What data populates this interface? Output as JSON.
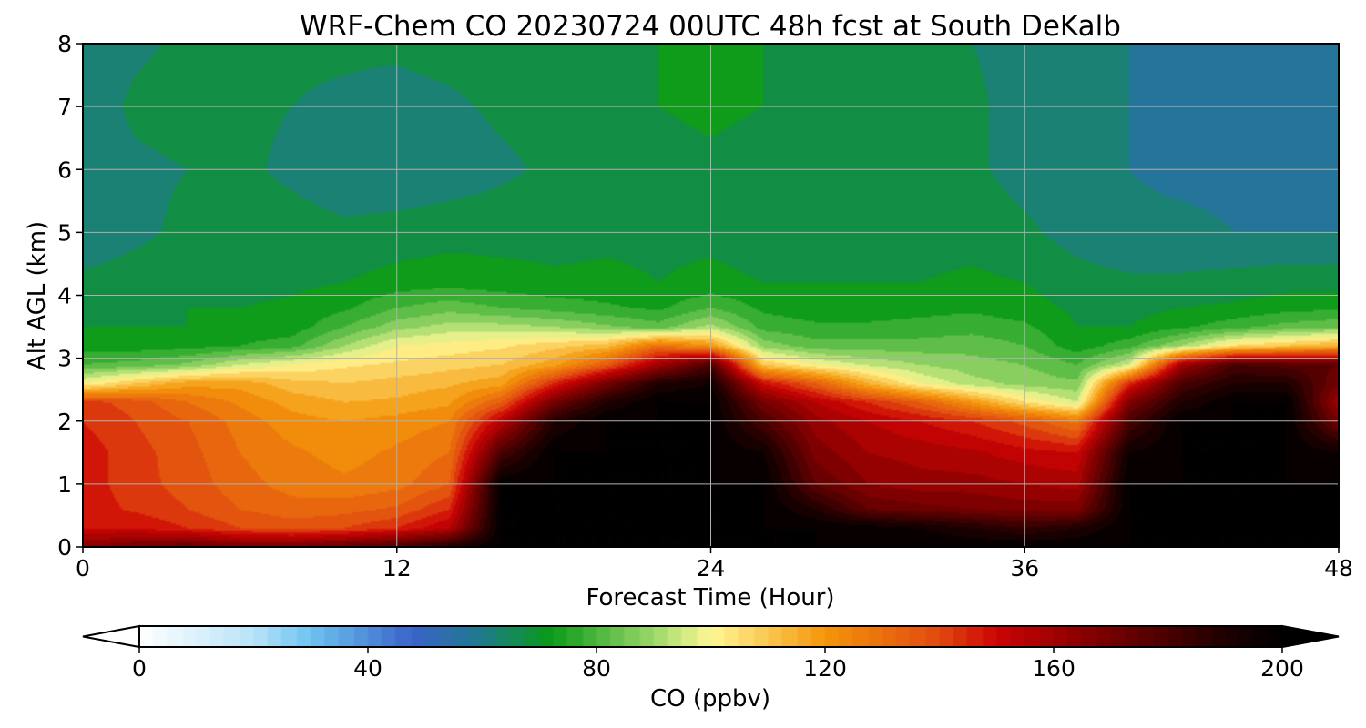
{
  "chart_data": {
    "type": "heatmap",
    "title": "WRF-Chem CO  20230724 00UTC 48h fcst at South DeKalb",
    "xlabel": "Forecast Time (Hour)",
    "ylabel": "Alt AGL (km)",
    "xlim": [
      0,
      48
    ],
    "ylim": [
      0,
      8
    ],
    "x_ticks": [
      0,
      12,
      24,
      36,
      48
    ],
    "y_ticks": [
      0,
      1,
      2,
      3,
      4,
      5,
      6,
      7,
      8
    ],
    "grid": true,
    "colorbar": {
      "label": "CO  (ppbv)",
      "range": [
        -10,
        210
      ],
      "ticks": [
        0,
        40,
        80,
        120,
        160,
        200
      ],
      "extend": "both",
      "orientation": "horizontal",
      "stops": [
        {
          "v": -10,
          "c": "#ffffff"
        },
        {
          "v": 0,
          "c": "#ffffff"
        },
        {
          "v": 20,
          "c": "#b8e4f8"
        },
        {
          "v": 30,
          "c": "#6cc3f0"
        },
        {
          "v": 48,
          "c": "#3a63c8"
        },
        {
          "v": 60,
          "c": "#1e7a8c"
        },
        {
          "v": 72,
          "c": "#0a9a18"
        },
        {
          "v": 90,
          "c": "#9cd86a"
        },
        {
          "v": 100,
          "c": "#fff896"
        },
        {
          "v": 120,
          "c": "#f4960a"
        },
        {
          "v": 140,
          "c": "#e04a10"
        },
        {
          "v": 150,
          "c": "#cc0404"
        },
        {
          "v": 165,
          "c": "#8a0000"
        },
        {
          "v": 190,
          "c": "#1e0000"
        },
        {
          "v": 200,
          "c": "#000000"
        },
        {
          "v": 210,
          "c": "#000000"
        }
      ]
    },
    "z_unit": "ppbv",
    "z_grid": {
      "x": [
        0,
        2,
        4,
        6,
        8,
        10,
        12,
        14,
        16,
        18,
        20,
        22,
        24,
        26,
        28,
        30,
        32,
        34,
        36,
        38,
        40,
        42,
        44,
        46,
        48
      ],
      "y": [
        0,
        0.3,
        0.6,
        1,
        1.5,
        2,
        2.3,
        2.6,
        2.9,
        3.2,
        3.5,
        3.8,
        4.2,
        5,
        6,
        7,
        8
      ],
      "values": [
        [
          165,
          170,
          175,
          170,
          170,
          175,
          180,
          190,
          200,
          200,
          200,
          200,
          200,
          200,
          200,
          200,
          200,
          200,
          200,
          200,
          200,
          200,
          200,
          200,
          200
        ],
        [
          150,
          150,
          145,
          140,
          138,
          140,
          145,
          155,
          200,
          200,
          200,
          200,
          200,
          200,
          200,
          198,
          195,
          190,
          185,
          190,
          200,
          200,
          200,
          200,
          200
        ],
        [
          148,
          144,
          140,
          135,
          132,
          133,
          136,
          145,
          200,
          200,
          200,
          200,
          200,
          200,
          190,
          175,
          172,
          170,
          168,
          168,
          200,
          200,
          200,
          200,
          200
        ],
        [
          148,
          142,
          138,
          132,
          128,
          126,
          128,
          135,
          200,
          200,
          200,
          200,
          200,
          200,
          175,
          165,
          162,
          162,
          160,
          158,
          200,
          200,
          200,
          200,
          200
        ],
        [
          148,
          142,
          137,
          130,
          126,
          123,
          126,
          130,
          180,
          200,
          200,
          200,
          200,
          195,
          168,
          160,
          158,
          156,
          152,
          150,
          195,
          200,
          200,
          200,
          195
        ],
        [
          145,
          140,
          135,
          128,
          122,
          120,
          122,
          125,
          155,
          190,
          200,
          200,
          200,
          180,
          162,
          155,
          150,
          145,
          138,
          128,
          180,
          200,
          200,
          200,
          170
        ],
        [
          142,
          138,
          130,
          124,
          118,
          115,
          116,
          119,
          135,
          170,
          190,
          200,
          200,
          170,
          155,
          145,
          135,
          120,
          105,
          95,
          168,
          190,
          200,
          200,
          160
        ],
        [
          100,
          110,
          118,
          118,
          112,
          110,
          112,
          114,
          118,
          145,
          170,
          190,
          195,
          150,
          135,
          115,
          100,
          92,
          88,
          86,
          145,
          180,
          190,
          190,
          170
        ],
        [
          80,
          82,
          86,
          95,
          100,
          104,
          106,
          108,
          110,
          118,
          135,
          160,
          180,
          110,
          100,
          94,
          90,
          87,
          85,
          80,
          95,
          160,
          180,
          178,
          175
        ],
        [
          72,
          72,
          73,
          75,
          78,
          90,
          100,
          102,
          104,
          108,
          112,
          130,
          120,
          88,
          82,
          82,
          82,
          83,
          80,
          72,
          78,
          90,
          105,
          110,
          115
        ],
        [
          70,
          70,
          70,
          71,
          72,
          80,
          88,
          92,
          92,
          90,
          86,
          82,
          92,
          78,
          76,
          76,
          77,
          78,
          76,
          70,
          70,
          74,
          78,
          82,
          84
        ],
        [
          68,
          69,
          70,
          70,
          71,
          74,
          80,
          83,
          80,
          78,
          76,
          74,
          80,
          74,
          72,
          72,
          73,
          74,
          72,
          69,
          68,
          70,
          71,
          73,
          74
        ],
        [
          66,
          67,
          68,
          68,
          69,
          70,
          72,
          73,
          72,
          71,
          71,
          70,
          71,
          70,
          70,
          70,
          70,
          71,
          70,
          67,
          66,
          66,
          67,
          68,
          68
        ],
        [
          62,
          64,
          66,
          67,
          67,
          66,
          67,
          68,
          68,
          68,
          69,
          69,
          69,
          68,
          68,
          68,
          68,
          68,
          66,
          63,
          61,
          61,
          60,
          60,
          60
        ],
        [
          62,
          64,
          65,
          66,
          64,
          62,
          61,
          62,
          64,
          66,
          68,
          68,
          69,
          68,
          68,
          69,
          68,
          66,
          63,
          62,
          60,
          59,
          59,
          58,
          58
        ],
        [
          62,
          66,
          67,
          66,
          65,
          64,
          63,
          64,
          66,
          67,
          69,
          70,
          71,
          70,
          69,
          68,
          67,
          66,
          63,
          62,
          60,
          59,
          58,
          58,
          58
        ],
        [
          60,
          64,
          66,
          65,
          66,
          66,
          66,
          67,
          68,
          68,
          70,
          70,
          72,
          70,
          68,
          67,
          66,
          65,
          63,
          62,
          60,
          59,
          59,
          59,
          59
        ]
      ]
    }
  }
}
